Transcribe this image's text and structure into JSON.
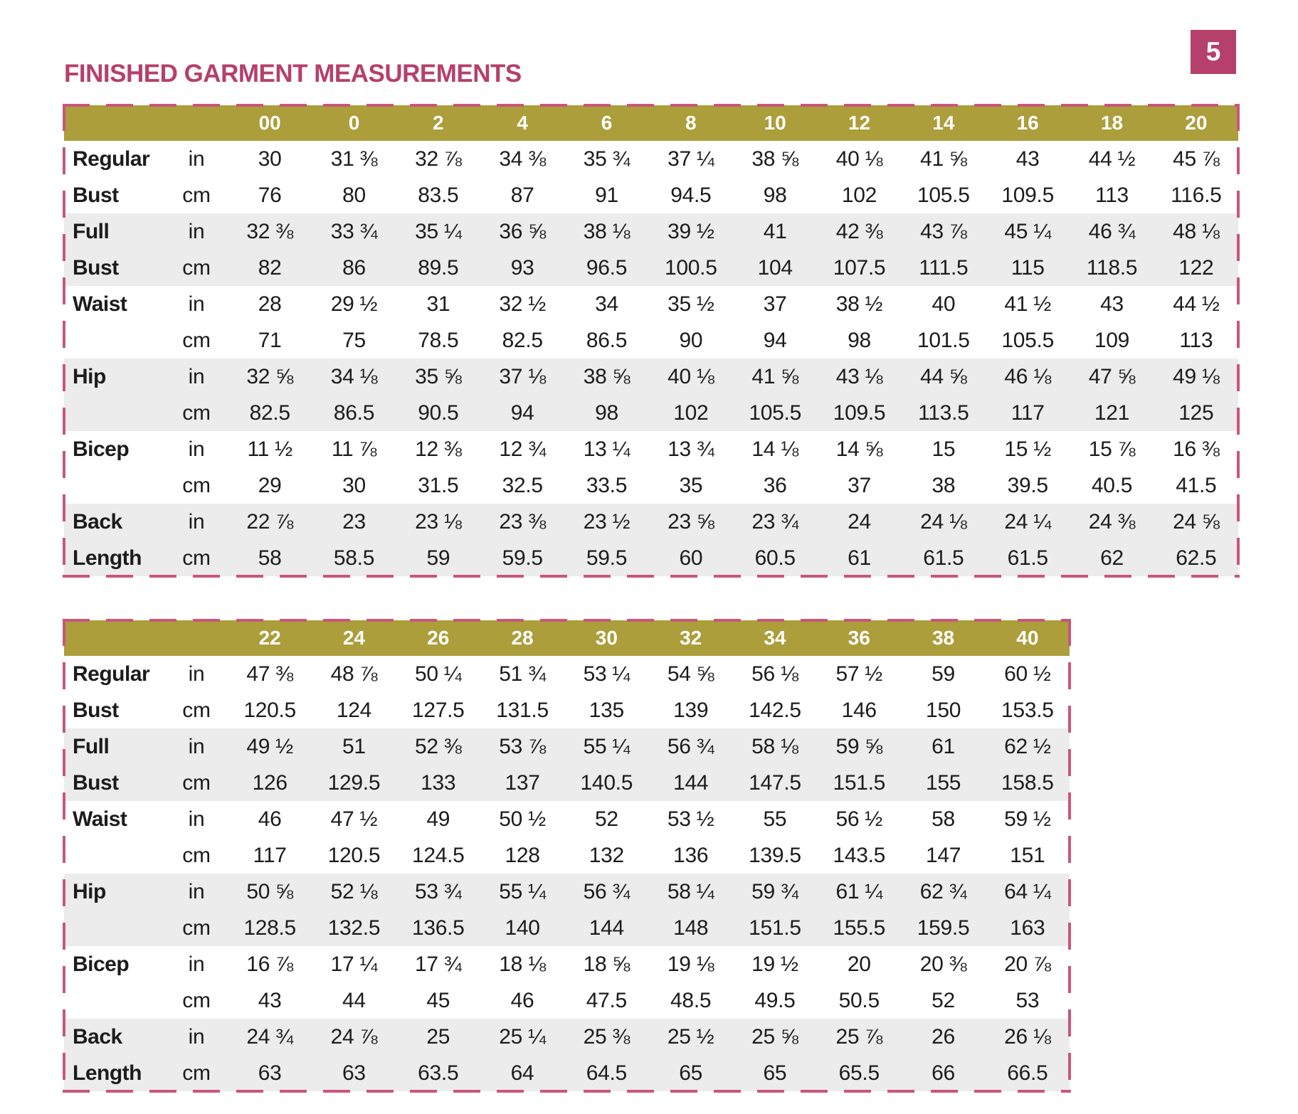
{
  "page": {
    "number": "5",
    "title": "FINISHED GARMENT MEASUREMENTS"
  },
  "colors": {
    "accent_pink": "#b5406c",
    "header_olive": "#ab9e3b",
    "row_alt_gray": "#ececec",
    "dashed_border_pink": "#c9567b"
  },
  "tables": [
    {
      "sizes": [
        "00",
        "0",
        "2",
        "4",
        "6",
        "8",
        "10",
        "12",
        "14",
        "16",
        "18",
        "20"
      ],
      "groups": [
        {
          "label_lines": [
            "Regular",
            "Bust"
          ],
          "rows": [
            {
              "unit": "in",
              "values": [
                "30",
                "31 ⅜",
                "32 ⅞",
                "34 ⅜",
                "35 ¾",
                "37 ¼",
                "38 ⅝",
                "40 ⅛",
                "41 ⅝",
                "43",
                "44 ½",
                "45 ⅞"
              ]
            },
            {
              "unit": "cm",
              "values": [
                "76",
                "80",
                "83.5",
                "87",
                "91",
                "94.5",
                "98",
                "102",
                "105.5",
                "109.5",
                "113",
                "116.5"
              ]
            }
          ]
        },
        {
          "label_lines": [
            "Full",
            "Bust"
          ],
          "rows": [
            {
              "unit": "in",
              "values": [
                "32 ⅜",
                "33 ¾",
                "35 ¼",
                "36 ⅝",
                "38 ⅛",
                "39 ½",
                "41",
                "42 ⅜",
                "43 ⅞",
                "45 ¼",
                "46 ¾",
                "48 ⅛"
              ]
            },
            {
              "unit": "cm",
              "values": [
                "82",
                "86",
                "89.5",
                "93",
                "96.5",
                "100.5",
                "104",
                "107.5",
                "111.5",
                "115",
                "118.5",
                "122"
              ]
            }
          ]
        },
        {
          "label_lines": [
            "Waist",
            ""
          ],
          "rows": [
            {
              "unit": "in",
              "values": [
                "28",
                "29 ½",
                "31",
                "32 ½",
                "34",
                "35 ½",
                "37",
                "38 ½",
                "40",
                "41 ½",
                "43",
                "44 ½"
              ]
            },
            {
              "unit": "cm",
              "values": [
                "71",
                "75",
                "78.5",
                "82.5",
                "86.5",
                "90",
                "94",
                "98",
                "101.5",
                "105.5",
                "109",
                "113"
              ]
            }
          ]
        },
        {
          "label_lines": [
            "Hip",
            ""
          ],
          "rows": [
            {
              "unit": "in",
              "values": [
                "32 ⅝",
                "34 ⅛",
                "35 ⅝",
                "37 ⅛",
                "38 ⅝",
                "40 ⅛",
                "41 ⅝",
                "43 ⅛",
                "44 ⅝",
                "46 ⅛",
                "47 ⅝",
                "49 ⅛"
              ]
            },
            {
              "unit": "cm",
              "values": [
                "82.5",
                "86.5",
                "90.5",
                "94",
                "98",
                "102",
                "105.5",
                "109.5",
                "113.5",
                "117",
                "121",
                "125"
              ]
            }
          ]
        },
        {
          "label_lines": [
            "Bicep",
            ""
          ],
          "rows": [
            {
              "unit": "in",
              "values": [
                "11 ½",
                "11 ⅞",
                "12 ⅜",
                "12 ¾",
                "13 ¼",
                "13 ¾",
                "14 ⅛",
                "14 ⅝",
                "15",
                "15 ½",
                "15 ⅞",
                "16 ⅜"
              ]
            },
            {
              "unit": "cm",
              "values": [
                "29",
                "30",
                "31.5",
                "32.5",
                "33.5",
                "35",
                "36",
                "37",
                "38",
                "39.5",
                "40.5",
                "41.5"
              ]
            }
          ]
        },
        {
          "label_lines": [
            "Back",
            "Length"
          ],
          "rows": [
            {
              "unit": "in",
              "values": [
                "22 ⅞",
                "23",
                "23 ⅛",
                "23 ⅜",
                "23 ½",
                "23 ⅝",
                "23 ¾",
                "24",
                "24 ⅛",
                "24 ¼",
                "24 ⅜",
                "24 ⅝"
              ]
            },
            {
              "unit": "cm",
              "values": [
                "58",
                "58.5",
                "59",
                "59.5",
                "59.5",
                "60",
                "60.5",
                "61",
                "61.5",
                "61.5",
                "62",
                "62.5"
              ]
            }
          ]
        }
      ]
    },
    {
      "sizes": [
        "22",
        "24",
        "26",
        "28",
        "30",
        "32",
        "34",
        "36",
        "38",
        "40"
      ],
      "groups": [
        {
          "label_lines": [
            "Regular",
            "Bust"
          ],
          "rows": [
            {
              "unit": "in",
              "values": [
                "47 ⅜",
                "48 ⅞",
                "50 ¼",
                "51 ¾",
                "53 ¼",
                "54 ⅝",
                "56 ⅛",
                "57 ½",
                "59",
                "60 ½"
              ]
            },
            {
              "unit": "cm",
              "values": [
                "120.5",
                "124",
                "127.5",
                "131.5",
                "135",
                "139",
                "142.5",
                "146",
                "150",
                "153.5"
              ]
            }
          ]
        },
        {
          "label_lines": [
            "Full",
            "Bust"
          ],
          "rows": [
            {
              "unit": "in",
              "values": [
                "49 ½",
                "51",
                "52 ⅜",
                "53 ⅞",
                "55 ¼",
                "56 ¾",
                "58 ⅛",
                "59 ⅝",
                "61",
                "62 ½"
              ]
            },
            {
              "unit": "cm",
              "values": [
                "126",
                "129.5",
                "133",
                "137",
                "140.5",
                "144",
                "147.5",
                "151.5",
                "155",
                "158.5"
              ]
            }
          ]
        },
        {
          "label_lines": [
            "Waist",
            ""
          ],
          "rows": [
            {
              "unit": "in",
              "values": [
                "46",
                "47 ½",
                "49",
                "50 ½",
                "52",
                "53 ½",
                "55",
                "56 ½",
                "58",
                "59 ½"
              ]
            },
            {
              "unit": "cm",
              "values": [
                "117",
                "120.5",
                "124.5",
                "128",
                "132",
                "136",
                "139.5",
                "143.5",
                "147",
                "151"
              ]
            }
          ]
        },
        {
          "label_lines": [
            "Hip",
            ""
          ],
          "rows": [
            {
              "unit": "in",
              "values": [
                "50 ⅝",
                "52 ⅛",
                "53 ¾",
                "55 ¼",
                "56 ¾",
                "58 ¼",
                "59 ¾",
                "61 ¼",
                "62 ¾",
                "64 ¼"
              ]
            },
            {
              "unit": "cm",
              "values": [
                "128.5",
                "132.5",
                "136.5",
                "140",
                "144",
                "148",
                "151.5",
                "155.5",
                "159.5",
                "163"
              ]
            }
          ]
        },
        {
          "label_lines": [
            "Bicep",
            ""
          ],
          "rows": [
            {
              "unit": "in",
              "values": [
                "16 ⅞",
                "17 ¼",
                "17 ¾",
                "18 ⅛",
                "18 ⅝",
                "19 ⅛",
                "19 ½",
                "20",
                "20 ⅜",
                "20 ⅞"
              ]
            },
            {
              "unit": "cm",
              "values": [
                "43",
                "44",
                "45",
                "46",
                "47.5",
                "48.5",
                "49.5",
                "50.5",
                "52",
                "53"
              ]
            }
          ]
        },
        {
          "label_lines": [
            "Back",
            "Length"
          ],
          "rows": [
            {
              "unit": "in",
              "values": [
                "24 ¾",
                "24 ⅞",
                "25",
                "25 ¼",
                "25 ⅜",
                "25 ½",
                "25 ⅝",
                "25 ⅞",
                "26",
                "26 ⅛"
              ]
            },
            {
              "unit": "cm",
              "values": [
                "63",
                "63",
                "63.5",
                "64",
                "64.5",
                "65",
                "65",
                "65.5",
                "66",
                "66.5"
              ]
            }
          ]
        }
      ]
    }
  ]
}
